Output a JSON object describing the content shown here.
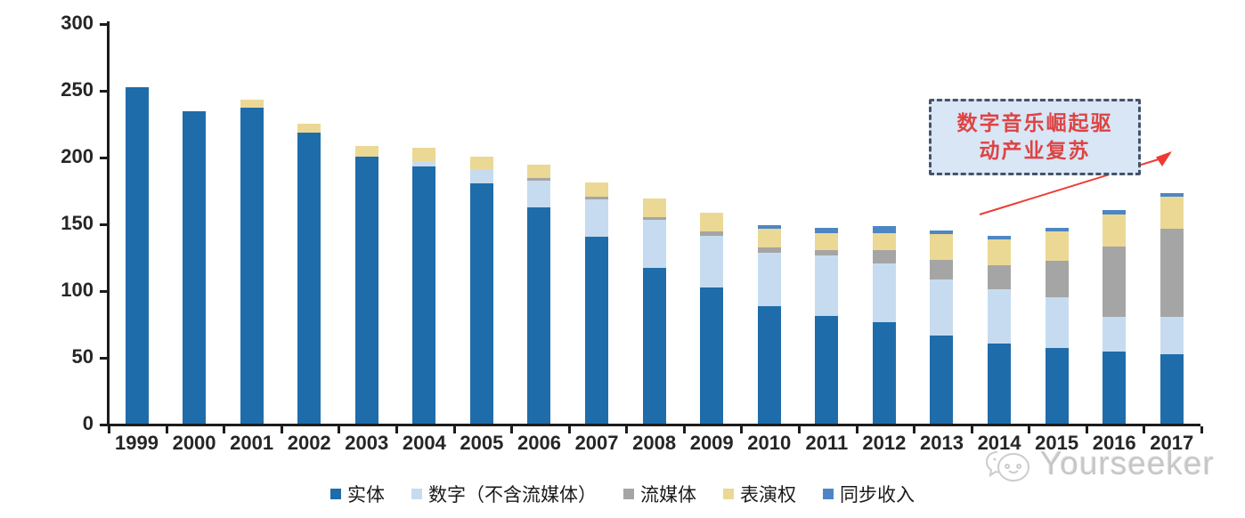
{
  "chart_data": {
    "type": "bar",
    "stacked": true,
    "title": "",
    "xlabel": "",
    "ylabel": "",
    "categories": [
      "1999",
      "2000",
      "2001",
      "2002",
      "2003",
      "2004",
      "2005",
      "2006",
      "2007",
      "2008",
      "2009",
      "2010",
      "2011",
      "2012",
      "2013",
      "2014",
      "2015",
      "2016",
      "2017"
    ],
    "series": [
      {
        "name": "实体",
        "color": "#1f6caa",
        "values": [
          252,
          234,
          237,
          218,
          200,
          193,
          180,
          162,
          140,
          117,
          102,
          88,
          81,
          76,
          66,
          60,
          57,
          54,
          52
        ]
      },
      {
        "name": "数字（不含流媒体）",
        "color": "#c6dbef",
        "values": [
          0,
          0,
          0,
          0,
          0,
          4,
          11,
          20,
          28,
          36,
          39,
          40,
          45,
          44,
          42,
          41,
          38,
          26,
          28
        ]
      },
      {
        "name": "流媒体",
        "color": "#a5a5a5",
        "values": [
          0,
          0,
          0,
          0,
          0,
          0,
          0,
          2,
          2,
          2,
          3,
          4,
          4,
          10,
          15,
          18,
          27,
          53,
          66
        ]
      },
      {
        "name": "表演权",
        "color": "#ebd894",
        "values": [
          0,
          0,
          6,
          7,
          8,
          10,
          9,
          10,
          11,
          14,
          14,
          14,
          13,
          13,
          19,
          19,
          22,
          24,
          24
        ]
      },
      {
        "name": "同步收入",
        "color": "#4e86c4",
        "values": [
          0,
          0,
          0,
          0,
          0,
          0,
          0,
          0,
          0,
          0,
          0,
          3,
          4,
          5,
          3,
          3,
          3,
          3,
          3
        ]
      }
    ],
    "totals": [
      252,
      234,
      243,
      225,
      208,
      207,
      200,
      194,
      181,
      169,
      158,
      149,
      147,
      148,
      145,
      141,
      147,
      160,
      173
    ],
    "ylim": [
      0,
      300
    ],
    "y_ticks": [
      0,
      50,
      100,
      150,
      200,
      250,
      300
    ],
    "grid": false,
    "legend_position": "bottom"
  },
  "annotation": {
    "line1": "数字音乐崛起驱",
    "line2": "动产业复苏",
    "border_color": "#44546A",
    "fill_color": "#d9e6f5",
    "text_color": "#dd4444",
    "arrow_color": "#ee3b33"
  },
  "watermark": {
    "text": "Yourseeker",
    "logo": "chat-bubbles-logo",
    "color": "#c7c7c7"
  }
}
